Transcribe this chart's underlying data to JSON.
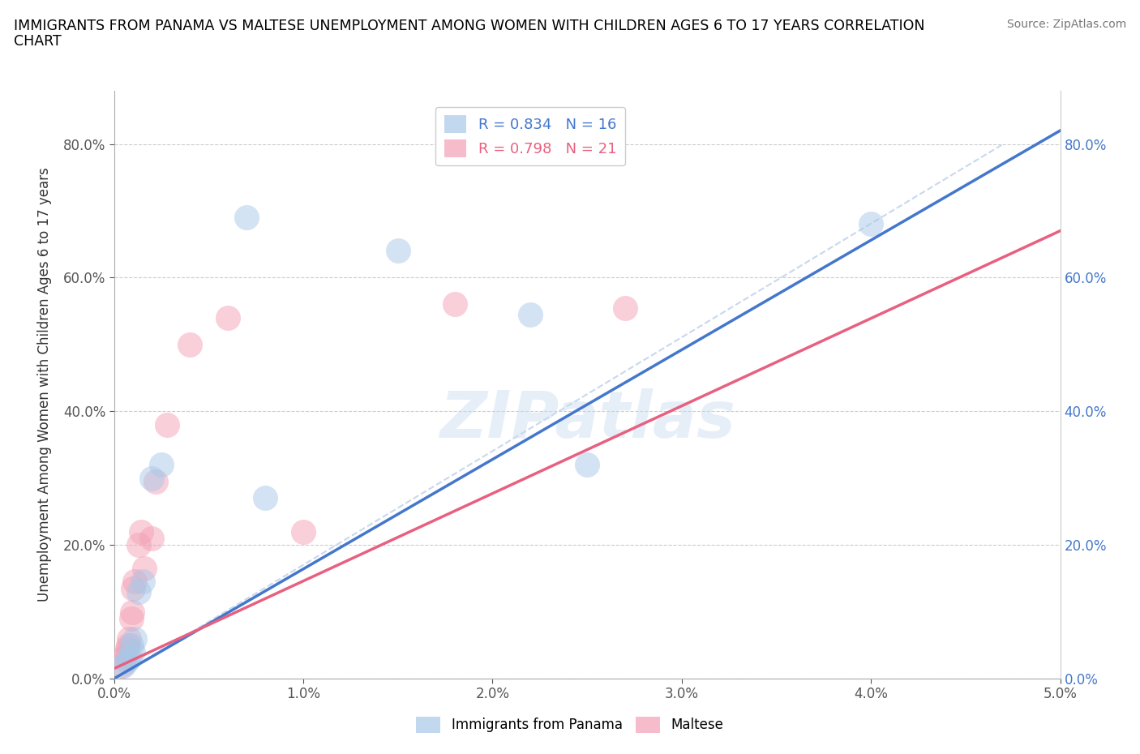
{
  "title_line1": "IMMIGRANTS FROM PANAMA VS MALTESE UNEMPLOYMENT AMONG WOMEN WITH CHILDREN AGES 6 TO 17 YEARS CORRELATION",
  "title_line2": "CHART",
  "source": "Source: ZipAtlas.com",
  "ylabel": "Unemployment Among Women with Children Ages 6 to 17 years",
  "xlim": [
    0.0,
    0.05
  ],
  "ylim": [
    0.0,
    0.88
  ],
  "xticks": [
    0.0,
    0.01,
    0.02,
    0.03,
    0.04,
    0.05
  ],
  "xticklabels": [
    "0.0%",
    "1.0%",
    "2.0%",
    "3.0%",
    "4.0%",
    "5.0%"
  ],
  "yticks": [
    0.0,
    0.2,
    0.4,
    0.6,
    0.8
  ],
  "yticklabels": [
    "0.0%",
    "20.0%",
    "40.0%",
    "60.0%",
    "80.0%"
  ],
  "blue_color": "#a8c8e8",
  "pink_color": "#f4a0b5",
  "blue_line_color": "#4477cc",
  "pink_line_color": "#e86080",
  "dashed_line_color": "#c8d8ee",
  "watermark_text": "ZIPatlas",
  "legend_R1": "R = 0.834",
  "legend_N1": "N = 16",
  "legend_R2": "R = 0.798",
  "legend_N2": "N = 21",
  "panama_x": [
    0.0005,
    0.00065,
    0.0008,
    0.0009,
    0.001,
    0.0011,
    0.0013,
    0.0015,
    0.002,
    0.0025,
    0.007,
    0.008,
    0.015,
    0.022,
    0.025,
    0.04
  ],
  "panama_y": [
    0.02,
    0.025,
    0.03,
    0.05,
    0.04,
    0.06,
    0.13,
    0.145,
    0.3,
    0.32,
    0.69,
    0.27,
    0.64,
    0.545,
    0.32,
    0.68
  ],
  "maltese_x": [
    0.0004,
    0.00055,
    0.0006,
    0.0007,
    0.00075,
    0.0008,
    0.0009,
    0.00095,
    0.001,
    0.0011,
    0.0013,
    0.00145,
    0.0016,
    0.002,
    0.0022,
    0.0028,
    0.004,
    0.006,
    0.01,
    0.018,
    0.027
  ],
  "maltese_y": [
    0.02,
    0.03,
    0.035,
    0.045,
    0.05,
    0.06,
    0.09,
    0.1,
    0.135,
    0.145,
    0.2,
    0.22,
    0.165,
    0.21,
    0.295,
    0.38,
    0.5,
    0.54,
    0.22,
    0.56,
    0.555
  ],
  "blue_line_x0": 0.0,
  "blue_line_y0": 0.0,
  "blue_line_x1": 0.05,
  "blue_line_y1": 0.82,
  "pink_line_x0": 0.0,
  "pink_line_y0": 0.015,
  "pink_line_x1": 0.05,
  "pink_line_y1": 0.67,
  "dash_line_x0": 0.0,
  "dash_line_y0": 0.0,
  "dash_line_x1": 0.047,
  "dash_line_y1": 0.8
}
